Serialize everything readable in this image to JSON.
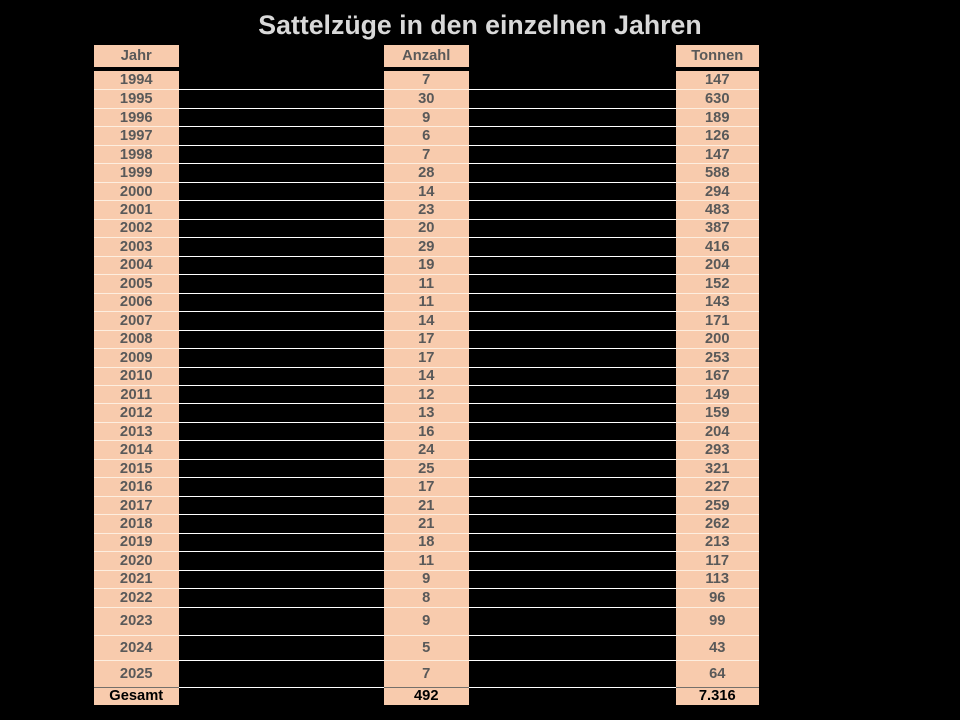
{
  "title": "Sattelzüge in den einzelnen Jahren",
  "table": {
    "headers": [
      "Jahr",
      "Anzahl",
      "Tonnen"
    ],
    "rows": [
      [
        "1994",
        "7",
        "147"
      ],
      [
        "1995",
        "30",
        "630"
      ],
      [
        "1996",
        "9",
        "189"
      ],
      [
        "1997",
        "6",
        "126"
      ],
      [
        "1998",
        "7",
        "147"
      ],
      [
        "1999",
        "28",
        "588"
      ],
      [
        "2000",
        "14",
        "294"
      ],
      [
        "2001",
        "23",
        "483"
      ],
      [
        "2002",
        "20",
        "387"
      ],
      [
        "2003",
        "29",
        "416"
      ],
      [
        "2004",
        "19",
        "204"
      ],
      [
        "2005",
        "11",
        "152"
      ],
      [
        "2006",
        "11",
        "143"
      ],
      [
        "2007",
        "14",
        "171"
      ],
      [
        "2008",
        "17",
        "200"
      ],
      [
        "2009",
        "17",
        "253"
      ],
      [
        "2010",
        "14",
        "167"
      ],
      [
        "2011",
        "12",
        "149"
      ],
      [
        "2012",
        "13",
        "159"
      ],
      [
        "2013",
        "16",
        "204"
      ],
      [
        "2014",
        "24",
        "293"
      ],
      [
        "2015",
        "25",
        "321"
      ],
      [
        "2016",
        "17",
        "227"
      ],
      [
        "2017",
        "21",
        "259"
      ],
      [
        "2018",
        "21",
        "262"
      ],
      [
        "2019",
        "18",
        "213"
      ],
      [
        "2020",
        "11",
        "117"
      ],
      [
        "2021",
        "9",
        "113"
      ],
      [
        "2022",
        "8",
        "96"
      ],
      [
        "2023",
        "9",
        "99"
      ],
      [
        "2024",
        "5",
        "43"
      ],
      [
        "2025",
        "7",
        "64"
      ]
    ],
    "total": [
      "Gesamt",
      "492",
      "7.316"
    ]
  },
  "colors": {
    "background": "#000000",
    "cell_fill": "#F8CBAD",
    "text": "#595959",
    "total_text": "#000000",
    "title_text": "#D9D9D9",
    "row_line": "#FFFFFF",
    "row_line_in_cell": "#FDEEDF",
    "total_line": "#75706A"
  }
}
